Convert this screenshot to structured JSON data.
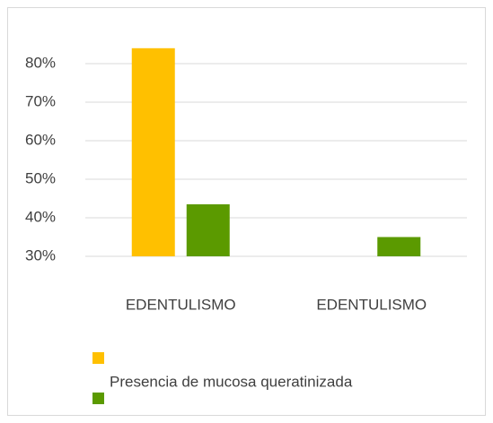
{
  "chart_data": {
    "type": "bar",
    "categories": [
      "EDENTULISMO",
      "EDENTULISMO"
    ],
    "series": [
      {
        "color": "#ffc000",
        "values": [
          84,
          null
        ]
      },
      {
        "name": "Presencia de mucosa queratinizada",
        "color": "#5b9a00",
        "values": [
          43.5,
          35
        ]
      }
    ],
    "ylim": [
      30,
      80
    ],
    "yticks": [
      {
        "value": 30,
        "label": "30%"
      },
      {
        "value": 40,
        "label": "40%"
      },
      {
        "value": 50,
        "label": "50%"
      },
      {
        "value": 60,
        "label": "60%"
      },
      {
        "value": 70,
        "label": "70%"
      },
      {
        "value": 80,
        "label": "80%"
      }
    ],
    "grid": true
  }
}
